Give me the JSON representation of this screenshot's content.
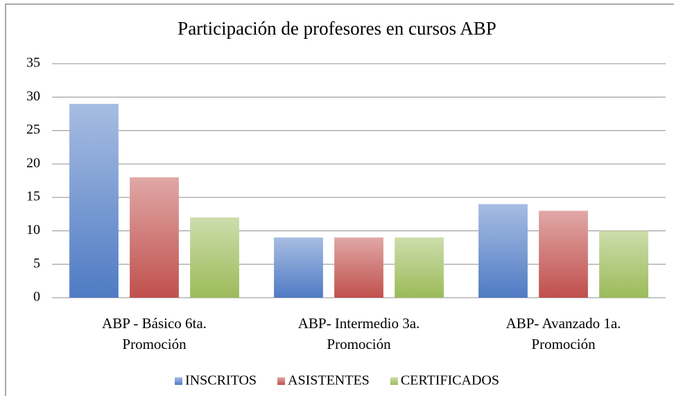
{
  "chart_data": {
    "type": "bar",
    "title": "Participación de profesores en cursos ABP",
    "categories": [
      "ABP - Básico 6ta. Promoción",
      "ABP- Intermedio 3a. Promoción",
      "ABP- Avanzado 1a. Promoción"
    ],
    "series": [
      {
        "name": "INSCRITOS",
        "color": "#4f7bc4",
        "values": [
          29,
          9,
          14
        ]
      },
      {
        "name": "ASISTENTES",
        "color": "#c0504d",
        "values": [
          18,
          9,
          13
        ]
      },
      {
        "name": "CERTIFICADOS",
        "color": "#9bbb59",
        "values": [
          12,
          9,
          10
        ]
      }
    ],
    "ylim": [
      0,
      35
    ],
    "yticks": [
      0,
      5,
      10,
      15,
      20,
      25,
      30,
      35
    ],
    "grid": true,
    "legend": "bottom"
  }
}
